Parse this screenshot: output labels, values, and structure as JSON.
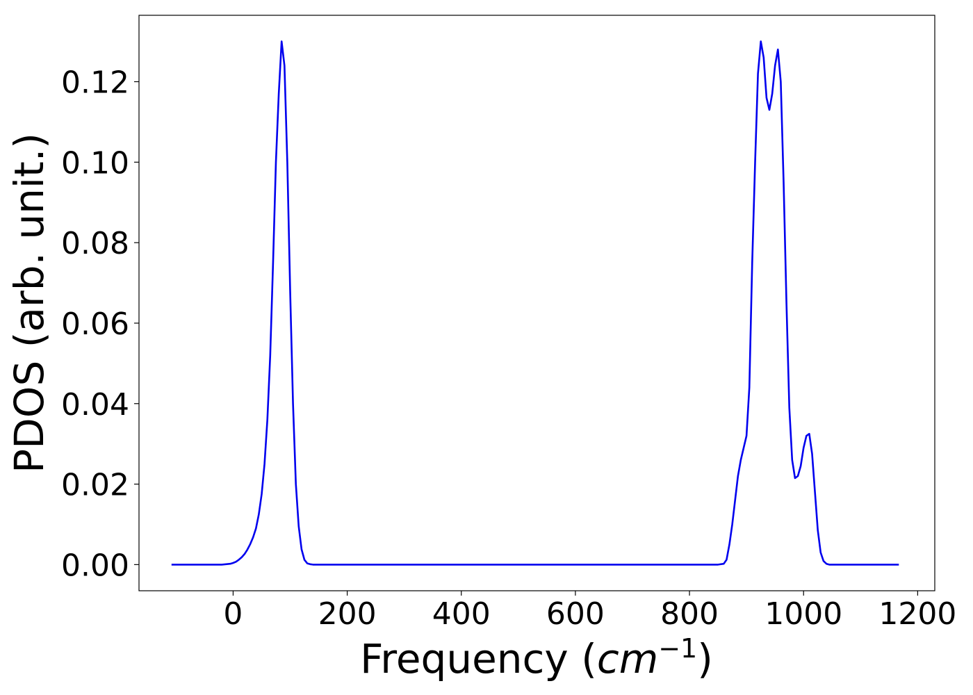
{
  "chart_data": {
    "type": "line",
    "title": "",
    "xlabel": "Frequency",
    "xlabel_unit_prefix": "(",
    "xlabel_unit": "cm",
    "xlabel_unit_exp": "−1",
    "xlabel_unit_suffix": ")",
    "ylabel": "PDOS (arb. unit.)",
    "xlim": [
      -165,
      1230
    ],
    "ylim": [
      -0.0065,
      0.1365
    ],
    "xticks": [
      0,
      200,
      400,
      600,
      800,
      1000,
      1200
    ],
    "xtick_labels": [
      "0",
      "200",
      "400",
      "600",
      "800",
      "1000",
      "1200"
    ],
    "yticks": [
      0.0,
      0.02,
      0.04,
      0.06,
      0.08,
      0.1,
      0.12
    ],
    "ytick_labels": [
      "0.00",
      "0.02",
      "0.04",
      "0.06",
      "0.08",
      "0.10",
      "0.12"
    ],
    "grid": false,
    "legend": "none",
    "series": [
      {
        "color": "#0000ee",
        "x": [
          -108,
          -60,
          -20,
          -5,
          0,
          5,
          10,
          15,
          20,
          25,
          30,
          35,
          40,
          45,
          50,
          55,
          60,
          65,
          70,
          75,
          80,
          85,
          90,
          95,
          100,
          105,
          110,
          115,
          120,
          125,
          130,
          135,
          140,
          145,
          150,
          155,
          160,
          165,
          200,
          400,
          600,
          800,
          850,
          860,
          865,
          870,
          875,
          880,
          885,
          890,
          895,
          900,
          905,
          910,
          915,
          920,
          925,
          930,
          935,
          940,
          945,
          950,
          955,
          960,
          965,
          970,
          975,
          980,
          985,
          990,
          995,
          1000,
          1005,
          1010,
          1015,
          1020,
          1025,
          1030,
          1035,
          1040,
          1045,
          1050,
          1055,
          1060,
          1065,
          1070,
          1075,
          1080,
          1085,
          1090,
          1095,
          1100,
          1130,
          1167
        ],
        "y": [
          0,
          0,
          0,
          0.0002,
          0.0004,
          0.0007,
          0.0012,
          0.0018,
          0.0026,
          0.0037,
          0.0051,
          0.0068,
          0.009,
          0.0125,
          0.0175,
          0.025,
          0.036,
          0.052,
          0.075,
          0.1,
          0.117,
          0.13,
          0.124,
          0.1,
          0.068,
          0.04,
          0.02,
          0.0095,
          0.0038,
          0.0012,
          0.0003,
          0.0001,
          0,
          0,
          0,
          0,
          0,
          0,
          0,
          0,
          0,
          0,
          0,
          0.0002,
          0.0012,
          0.005,
          0.01,
          0.016,
          0.022,
          0.026,
          0.029,
          0.032,
          0.044,
          0.075,
          0.1,
          0.122,
          0.13,
          0.126,
          0.116,
          0.113,
          0.117,
          0.124,
          0.128,
          0.12,
          0.095,
          0.065,
          0.039,
          0.026,
          0.0215,
          0.022,
          0.0245,
          0.029,
          0.032,
          0.0325,
          0.0275,
          0.018,
          0.0085,
          0.003,
          0.0009,
          0.0002,
          0,
          0,
          0,
          0,
          0,
          0,
          0,
          0,
          0,
          0,
          0,
          0,
          0,
          0
        ]
      }
    ]
  }
}
